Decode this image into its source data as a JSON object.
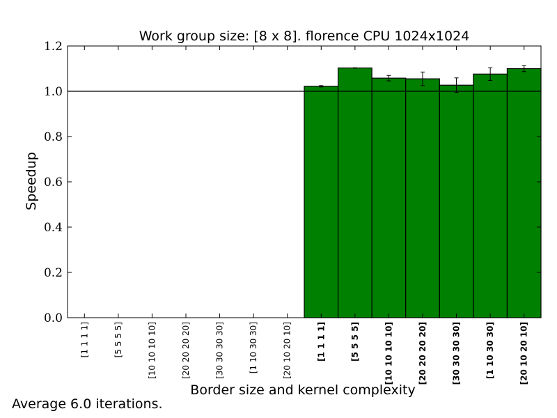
{
  "footnote": "Average 6.0 iterations.",
  "chart_data": {
    "type": "bar",
    "title": "Work group size: [8 x 8]. florence CPU 1024x1024",
    "xlabel": "Border size and kernel complexity",
    "ylabel": "Speedup",
    "ylim": [
      0.0,
      1.2
    ],
    "yticks": [
      "0.0",
      "0.2",
      "0.4",
      "0.6",
      "0.8",
      "1.0",
      "1.2"
    ],
    "reference_line": 1.0,
    "bar_color": "#008000",
    "grid": false,
    "categories": [
      "[1 1 1 1]",
      "[5 5 5 5]",
      "[10 10 10 10]",
      "[20 20 20 20]",
      "[30 30 30 30]",
      "[1 10 30 30]",
      "[20 10 20 10]",
      "[1 1 1 1]",
      "[5 5 5 5]",
      "[10 10 10 10]",
      "[20 20 20 20]",
      "[30 30 30 30]",
      "[1 10 30 30]",
      "[20 10 20 10]"
    ],
    "bold_categories": [
      false,
      false,
      false,
      false,
      false,
      false,
      false,
      true,
      true,
      true,
      true,
      true,
      true,
      true
    ],
    "values": [
      0,
      0,
      0,
      0,
      0,
      0,
      0,
      1.022,
      1.103,
      1.058,
      1.055,
      1.027,
      1.076,
      1.1
    ],
    "errors": [
      0,
      0,
      0,
      0,
      0,
      0,
      0,
      0.003,
      0.001,
      0.012,
      0.03,
      0.032,
      0.028,
      0.013
    ]
  }
}
